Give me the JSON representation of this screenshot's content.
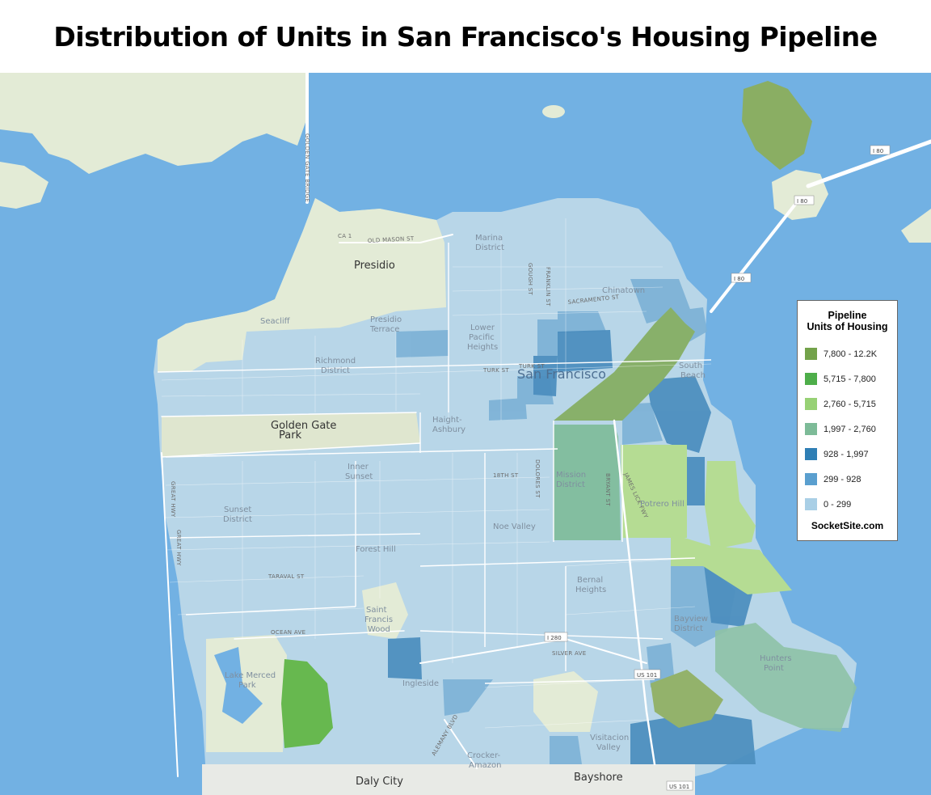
{
  "title": "Distribution of Units in San Francisco's Housing Pipeline",
  "legend": {
    "title_line1": "Pipeline",
    "title_line2": "Units of Housing",
    "items": [
      {
        "label": "7,800 - 12.2K",
        "color": "#73a24a"
      },
      {
        "label": "5,715 - 7,800",
        "color": "#4eae4a"
      },
      {
        "label": "2,760 - 5,715",
        "color": "#97d175"
      },
      {
        "label": "1,997 - 2,760",
        "color": "#7dbb98"
      },
      {
        "label": "928 - 1,997",
        "color": "#2f7fb5"
      },
      {
        "label": "299 - 928",
        "color": "#5a9fcf"
      },
      {
        "label": "0 - 299",
        "color": "#a9cfe6"
      }
    ],
    "credit": "SocketSite.com"
  },
  "colors": {
    "water": "#72b1e3",
    "land": "#e3ebd6",
    "park": "#dfe6cf",
    "low": "#b8d6e8",
    "streets": "#ffffff"
  },
  "labels": {
    "city": "San Francisco",
    "daly_city": "Daly City",
    "bayshore": "Bayshore",
    "presidio": "Presidio",
    "golden_gate_park": "Golden Gate Park",
    "golden_gate_park_l1": "Golden Gate",
    "golden_gate_park_l2": "Park",
    "marina_l1": "Marina",
    "marina_l2": "District",
    "richmond_l1": "Richmond",
    "richmond_l2": "District",
    "sunset_l1": "Sunset",
    "sunset_l2": "District",
    "inner_sunset_l1": "Inner",
    "inner_sunset_l2": "Sunset",
    "haight_l1": "Haight-",
    "haight_l2": "Ashbury",
    "lower_pacific_l1": "Lower",
    "lower_pacific_l2": "Pacific",
    "lower_pacific_l3": "Heights",
    "presidio_terrace_l1": "Presidio",
    "presidio_terrace_l2": "Terrace",
    "seacliff": "Seacliff",
    "chinatown": "Chinatown",
    "south_beach_l1": "South",
    "south_beach_l2": "Beach",
    "mission_l1": "Mission",
    "mission_l2": "District",
    "potrero": "Potrero Hill",
    "noe_valley": "Noe Valley",
    "forest_hill": "Forest Hill",
    "bernal_l1": "Bernal",
    "bernal_l2": "Heights",
    "bayview_l1": "Bayview",
    "bayview_l2": "District",
    "hunters_l1": "Hunters",
    "hunters_l2": "Point",
    "saint_francis_l1": "Saint",
    "saint_francis_l2": "Francis",
    "saint_francis_l3": "Wood",
    "lake_merced_l1": "Lake Merced",
    "lake_merced_l2": "Park",
    "ingleside": "Ingleside",
    "visitacion_l1": "Visitacion",
    "visitacion_l2": "Valley",
    "crocker_l1": "Crocker-",
    "crocker_l2": "Amazon",
    "golden_gate_bridge": "GOLDEN GATE BRIDGE",
    "old_mason": "OLD MASON ST",
    "ca1": "CA 1",
    "franklin": "FRANKLIN ST",
    "gough": "GOUGH ST",
    "sacramento": "SACRAMENTO ST",
    "turk": "TURK ST",
    "turk2": "TURK ST",
    "eighteenth": "18TH ST",
    "dolores": "DOLORES ST",
    "bryant": "BRYANT ST",
    "james_lick": "JAMES LICK FWY",
    "great_hwy": "GREAT HWY",
    "great_hwy2": "GREAT HWY",
    "taraval": "TARAVAL ST",
    "ocean": "OCEAN AVE",
    "alemany": "ALEMANY BLVD",
    "i80": "I 80",
    "i80b": "I 80",
    "i80c": "I 80",
    "i280": "I 280",
    "silver": "SILVER AVE",
    "us101": "US 101",
    "us101b": "US 101"
  }
}
